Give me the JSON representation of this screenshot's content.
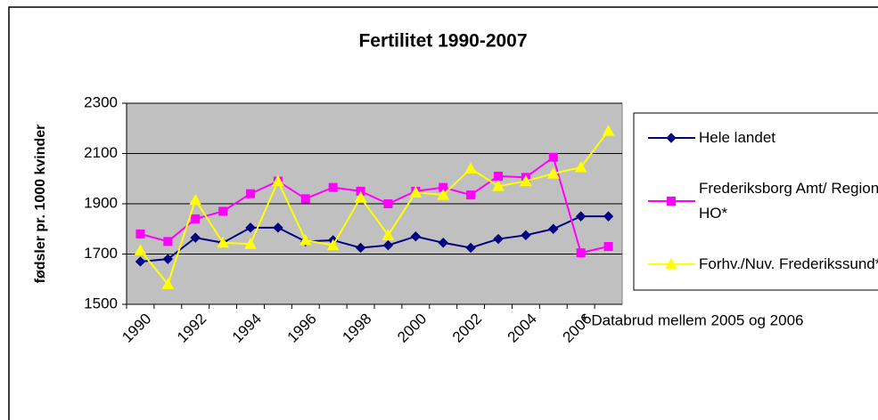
{
  "chart_data": {
    "type": "line",
    "title": "Fertilitet 1990-2007",
    "y_label": "fødsler pr. 1000 kvinder",
    "annotation": "* Databrud mellem 2005 og 2006",
    "categories": [
      "1990",
      null,
      "1992",
      null,
      "1994",
      null,
      "1996",
      null,
      "1998",
      null,
      "2000",
      null,
      "2002",
      null,
      "2004",
      null,
      "2006",
      null
    ],
    "series": [
      {
        "name": "Hele landet",
        "color": "#000080",
        "marker": "diamond",
        "values": [
          1670,
          1680,
          1765,
          1745,
          1805,
          1805,
          1750,
          1755,
          1725,
          1735,
          1770,
          1745,
          1725,
          1760,
          1775,
          1800,
          1850,
          1850
        ]
      },
      {
        "name": "Frederiksborg Amt/ Region HO*",
        "color": "#ff00ff",
        "marker": "square",
        "values": [
          1780,
          1750,
          1840,
          1870,
          1940,
          1990,
          1920,
          1965,
          1950,
          1900,
          1950,
          1965,
          1935,
          2010,
          2005,
          2085,
          1705,
          1730
        ]
      },
      {
        "name": "Forhv./Nuv. Frederikssund*",
        "color": "#ffff00",
        "marker": "triangle",
        "values": [
          1715,
          1580,
          1915,
          1745,
          1740,
          1990,
          1755,
          1735,
          1925,
          1775,
          1945,
          1935,
          2040,
          1970,
          1990,
          2020,
          2045,
          2190
        ]
      }
    ],
    "ylim": [
      1500,
      2300
    ],
    "yticks": [
      1500,
      1700,
      1900,
      2100,
      2300
    ],
    "grid": true,
    "plot_background": "#c0c0c0"
  }
}
